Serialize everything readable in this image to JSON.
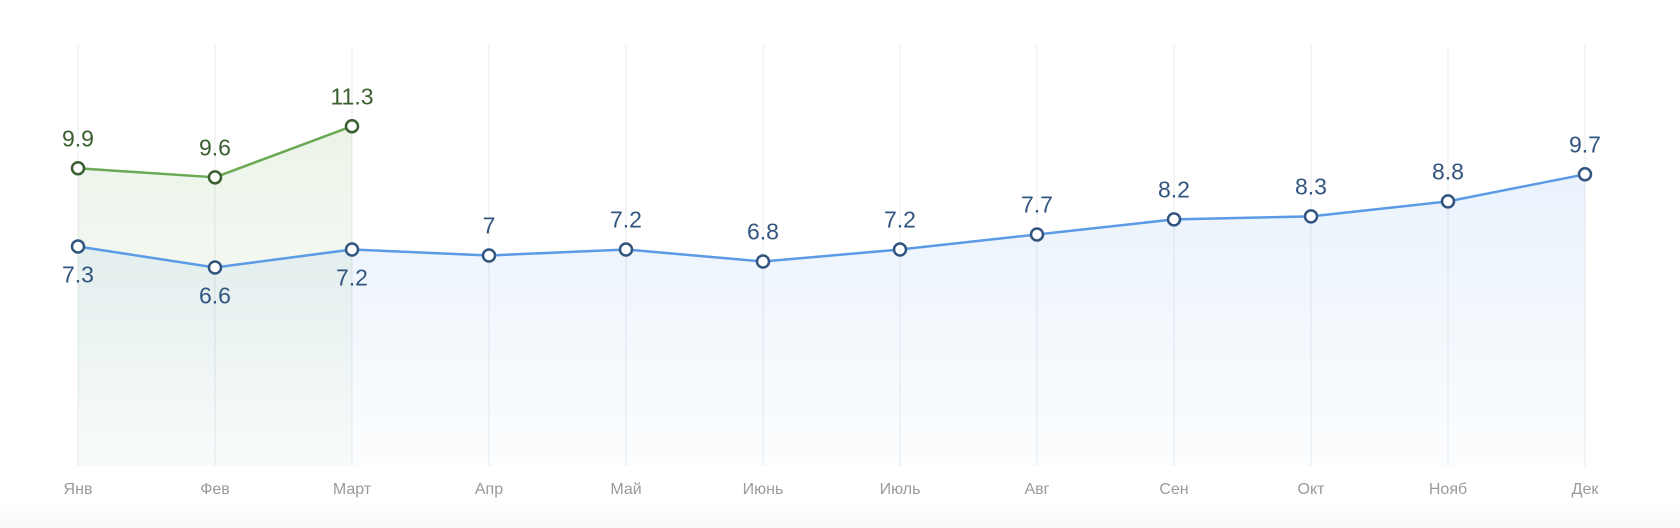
{
  "chart_data": {
    "type": "line",
    "categories": [
      "Янв",
      "Фев",
      "Март",
      "Апр",
      "Май",
      "Июнь",
      "Июль",
      "Авг",
      "Сен",
      "Окт",
      "Нояб",
      "Дек"
    ],
    "series": [
      {
        "color": "#5b9be6",
        "values": [
          7.3,
          6.6,
          7.2,
          7,
          7.2,
          6.8,
          7.2,
          7.7,
          8.2,
          8.3,
          8.8,
          9.7
        ]
      },
      {
        "color": "#6aaa55",
        "values": [
          9.9,
          9.6,
          11.3,
          null,
          null,
          null,
          null,
          null,
          null,
          null,
          null,
          null
        ]
      }
    ],
    "ylim": [
      0,
      14
    ],
    "grid": true
  }
}
